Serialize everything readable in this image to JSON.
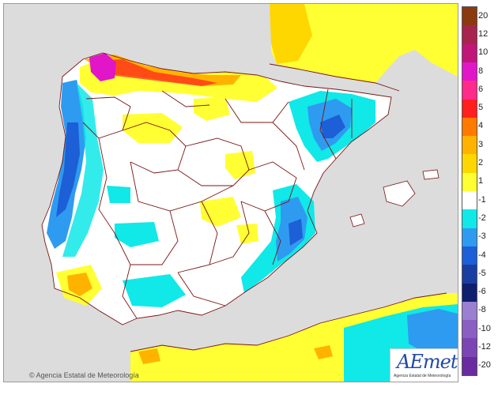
{
  "credit": "Agencia Estatal de Meteorología",
  "logo": {
    "wordmark": "AEmet",
    "subtitle": "Agencia Estatal de Meteorología"
  },
  "colors": {
    "sea": "#dcdcdc",
    "land_neutral": "#ffffff",
    "border_line": "#7a1414"
  },
  "legend": [
    {
      "label": "20",
      "color": "#8b3a0f"
    },
    {
      "label": "12",
      "color": "#a6244e"
    },
    {
      "label": "10",
      "color": "#c0167a"
    },
    {
      "label": "8",
      "color": "#e016c8"
    },
    {
      "label": "6",
      "color": "#ff2a8a"
    },
    {
      "label": "5",
      "color": "#ff1f1f"
    },
    {
      "label": "4",
      "color": "#ff7a00"
    },
    {
      "label": "3",
      "color": "#ffb300"
    },
    {
      "label": "2",
      "color": "#ffd700"
    },
    {
      "label": "1",
      "color": "#ffff33"
    },
    {
      "label": "-1",
      "color": "#ffffff"
    },
    {
      "label": "-2",
      "color": "#11e8e8"
    },
    {
      "label": "-3",
      "color": "#2e9bf0"
    },
    {
      "label": "-4",
      "color": "#1c5fd6"
    },
    {
      "label": "-5",
      "color": "#1a3ea0"
    },
    {
      "label": "-6",
      "color": "#0e1f6e"
    },
    {
      "label": "-8",
      "color": "#9b7fd1"
    },
    {
      "label": "-10",
      "color": "#8a5fc2"
    },
    {
      "label": "-12",
      "color": "#7b45b3"
    },
    {
      "label": "-20",
      "color": "#6a2aa0"
    }
  ]
}
